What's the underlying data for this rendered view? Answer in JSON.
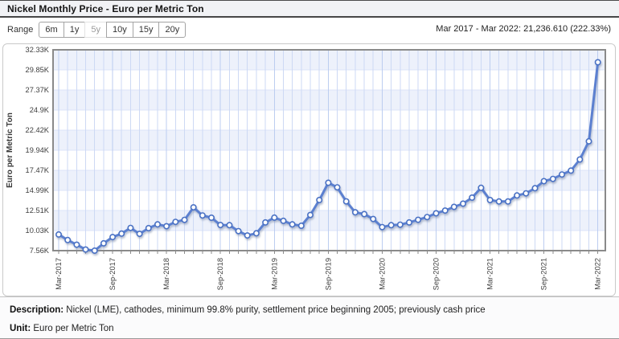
{
  "header": {
    "title": "Nickel Monthly Price - Euro per Metric Ton"
  },
  "toolbar": {
    "range_label": "Range",
    "range_options": [
      {
        "label": "6m",
        "active": false
      },
      {
        "label": "1y",
        "active": false
      },
      {
        "label": "5y",
        "active": true
      },
      {
        "label": "10y",
        "active": false
      },
      {
        "label": "15y",
        "active": false
      },
      {
        "label": "20y",
        "active": false
      }
    ],
    "period_summary": "Mar 2017 - Mar 2022: 21,236.610 (222.33%)"
  },
  "chart_data": {
    "type": "line",
    "title": "Nickel Monthly Price",
    "ylabel": "Euro per Metric Ton",
    "xlabel": "",
    "grid": true,
    "legend": "none",
    "marker": "circle",
    "x_tick_interval": 6,
    "y_ticks": [
      "32.33K",
      "29.85K",
      "27.37K",
      "24.9K",
      "22.42K",
      "19.94K",
      "17.47K",
      "14.99K",
      "12.51K",
      "10.03K",
      "7.56K"
    ],
    "y_min": 7556.5,
    "y_max": 32327.5,
    "x": [
      "Mar-2017",
      "Apr-2017",
      "May-2017",
      "Jun-2017",
      "Jul-2017",
      "Aug-2017",
      "Sep-2017",
      "Oct-2017",
      "Nov-2017",
      "Dec-2017",
      "Jan-2018",
      "Feb-2018",
      "Mar-2018",
      "Apr-2018",
      "May-2018",
      "Jun-2018",
      "Jul-2018",
      "Aug-2018",
      "Sep-2018",
      "Oct-2018",
      "Nov-2018",
      "Dec-2018",
      "Jan-2019",
      "Feb-2019",
      "Mar-2019",
      "Apr-2019",
      "May-2019",
      "Jun-2019",
      "Jul-2019",
      "Aug-2019",
      "Sep-2019",
      "Oct-2019",
      "Nov-2019",
      "Dec-2019",
      "Jan-2020",
      "Feb-2020",
      "Mar-2020",
      "Apr-2020",
      "May-2020",
      "Jun-2020",
      "Jul-2020",
      "Aug-2020",
      "Sep-2020",
      "Oct-2020",
      "Nov-2020",
      "Dec-2020",
      "Jan-2021",
      "Feb-2021",
      "Mar-2021",
      "Apr-2021",
      "May-2021",
      "Jun-2021",
      "Jul-2021",
      "Aug-2021",
      "Sep-2021",
      "Oct-2021",
      "Nov-2021",
      "Dec-2021",
      "Jan-2022",
      "Feb-2022",
      "Mar-2022"
    ],
    "values": [
      9552,
      8860,
      8290,
      7700,
      7557,
      8460,
      9230,
      9660,
      10360,
      9630,
      10330,
      10800,
      10570,
      11100,
      11350,
      12900,
      11900,
      11620,
      10720,
      10700,
      9960,
      9430,
      9700,
      11030,
      11630,
      11230,
      10800,
      10630,
      11960,
      13800,
      15930,
      15360,
      13630,
      12280,
      12060,
      11460,
      10460,
      10700,
      10760,
      11030,
      11360,
      11700,
      12160,
      12500,
      12960,
      13350,
      14100,
      15300,
      13800,
      13620,
      13620,
      14360,
      14620,
      15260,
      16130,
      16400,
      16950,
      17430,
      18800,
      21040,
      30788
    ],
    "colors": {
      "line": "#5b80d0",
      "marker_fill": "#ffffff",
      "marker_stroke": "#4a71c4",
      "band": "#edf1fb",
      "grid_minor": "#cdd9f4",
      "grid_major": "#bccdf0",
      "plot_border": "#8a8a8a",
      "tick_text": "#3d3d3d",
      "shadow": "#7d8cab"
    }
  },
  "footer": {
    "description_label": "Description:",
    "description": "Nickel (LME), cathodes, minimum 99.8% purity, settlement price beginning 2005; previously cash price",
    "unit_label": "Unit:",
    "unit": "Euro per Metric Ton"
  }
}
